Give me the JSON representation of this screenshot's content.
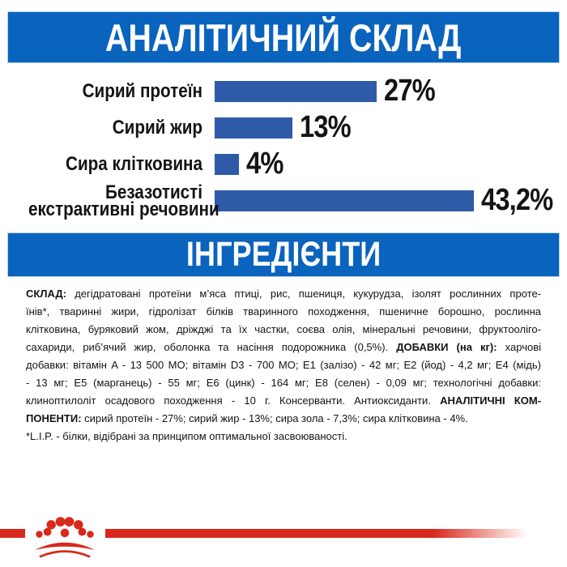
{
  "colors": {
    "band_blue": "#0a63bd",
    "bar_blue": "#2e5ba8",
    "text_black": "#141414",
    "logo_red": "#d8291c"
  },
  "sections": {
    "analytical": {
      "title": "АНАЛІТИЧНИЙ СКЛАД"
    },
    "ingredients": {
      "title": "ІНГРЕДІЄНТИ"
    }
  },
  "chart_data": {
    "type": "bar",
    "orientation": "horizontal",
    "title": "АНАЛІТИЧНИЙ СКЛАД",
    "categories": [
      "Сирий протеїн",
      "Сирий жир",
      "Сира клітковина",
      "Безазотисті екстрактивні речовини"
    ],
    "values": [
      27,
      13,
      4,
      43.2
    ],
    "value_labels": [
      "27%",
      "13%",
      "4%",
      "43,2%"
    ],
    "unit": "%",
    "xlim": [
      0,
      45
    ],
    "grid": false,
    "legend": false,
    "bar_color": "#2e5ba8",
    "bars": [
      {
        "label_lines": [
          "Сирий протеїн"
        ],
        "value": 27,
        "value_label": "27%"
      },
      {
        "label_lines": [
          "Сирий жир"
        ],
        "value": 13,
        "value_label": "13%"
      },
      {
        "label_lines": [
          "Сира клітковина"
        ],
        "value": 4,
        "value_label": "4%"
      },
      {
        "label_lines": [
          "Безазотисті",
          "екстрактивні речовини"
        ],
        "value": 43.2,
        "value_label": "43,2%"
      }
    ]
  },
  "composition": {
    "lines": [
      {
        "justify": true,
        "segments": [
          {
            "text": "СКЛАД:",
            "bold": true
          },
          {
            "text": " дегідратовані протеїни м’яса птиці, рис, пшениця, кукурудза, ізолят рослинних проте-",
            "bold": false
          }
        ]
      },
      {
        "justify": true,
        "segments": [
          {
            "text": "їнів*, тваринні жири, гідролізат білків тваринного походження, пшеничне борошно, рослинна",
            "bold": false
          }
        ]
      },
      {
        "justify": true,
        "segments": [
          {
            "text": "клітковина, буряковий жом, дріжджі та їх частки, соєва олія, мінеральні речовини, фруктооліго-",
            "bold": false
          }
        ]
      },
      {
        "justify": true,
        "segments": [
          {
            "text": "сахариди, риб’ячий жир, оболонка та насіння подорожника (0,5%). ",
            "bold": false
          },
          {
            "text": "ДОБАВКИ (на кг):",
            "bold": true
          },
          {
            "text": " харчові",
            "bold": false
          }
        ]
      },
      {
        "justify": true,
        "segments": [
          {
            "text": "добавки: вітамін A - 13 500 МО; вітамін D3 - 700 МО; E1 (залізо) - 42 мг; E2 (йод) - 4,2 мг; E4 (мідь)",
            "bold": false
          }
        ]
      },
      {
        "justify": true,
        "segments": [
          {
            "text": "- 13 мг; E5 (марганець) - 55 мг; E6 (цинк) - 164 мг; E8 (селен) - 0,09 мг; технологічні добавки:",
            "bold": false
          }
        ]
      },
      {
        "justify": true,
        "segments": [
          {
            "text": "клиноптилоліт осадового походження - 10 г. Консерванти. Антиоксиданти. ",
            "bold": false
          },
          {
            "text": "АНАЛІТИЧНІ КОМ-",
            "bold": true
          }
        ]
      },
      {
        "justify": false,
        "segments": [
          {
            "text": "ПОНЕНТИ:",
            "bold": true
          },
          {
            "text": " сирий протеїн - 27%; сирий жир - 13%; сира зола - 7,3%; сира клітковина - 4%.",
            "bold": false
          }
        ]
      },
      {
        "justify": false,
        "segments": [
          {
            "text": "*L.I.P. - білки, відібрані за принципом оптимальної засвоюваності.",
            "bold": false
          }
        ]
      }
    ]
  },
  "logo": {
    "name": "Royal Canin crown",
    "color": "#d8291c"
  }
}
